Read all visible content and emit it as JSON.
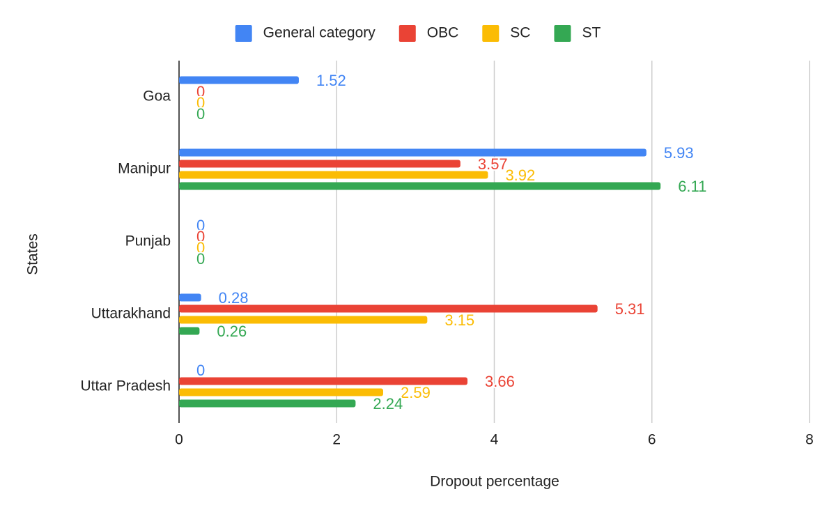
{
  "chart_data": {
    "type": "bar",
    "orientation": "horizontal",
    "x_label": "Dropout percentage",
    "y_label": "States",
    "categories": [
      "Goa",
      "Manipur",
      "Punjab",
      "Uttarakhand",
      "Uttar Pradesh"
    ],
    "series": [
      {
        "name": "General category",
        "color": "#4285f4",
        "values": [
          1.52,
          5.93,
          0,
          0.28,
          0
        ]
      },
      {
        "name": "OBC",
        "color": "#ea4335",
        "values": [
          0,
          3.57,
          0,
          5.31,
          3.66
        ]
      },
      {
        "name": "SC",
        "color": "#fbbc04",
        "values": [
          0,
          3.92,
          0,
          3.15,
          2.59
        ]
      },
      {
        "name": "ST",
        "color": "#34a853",
        "values": [
          0,
          6.11,
          0,
          0.26,
          2.24
        ]
      }
    ],
    "xlim": [
      0,
      8
    ],
    "xticks": [
      0,
      2,
      4,
      6,
      8
    ],
    "grid": true,
    "legend": "top"
  }
}
